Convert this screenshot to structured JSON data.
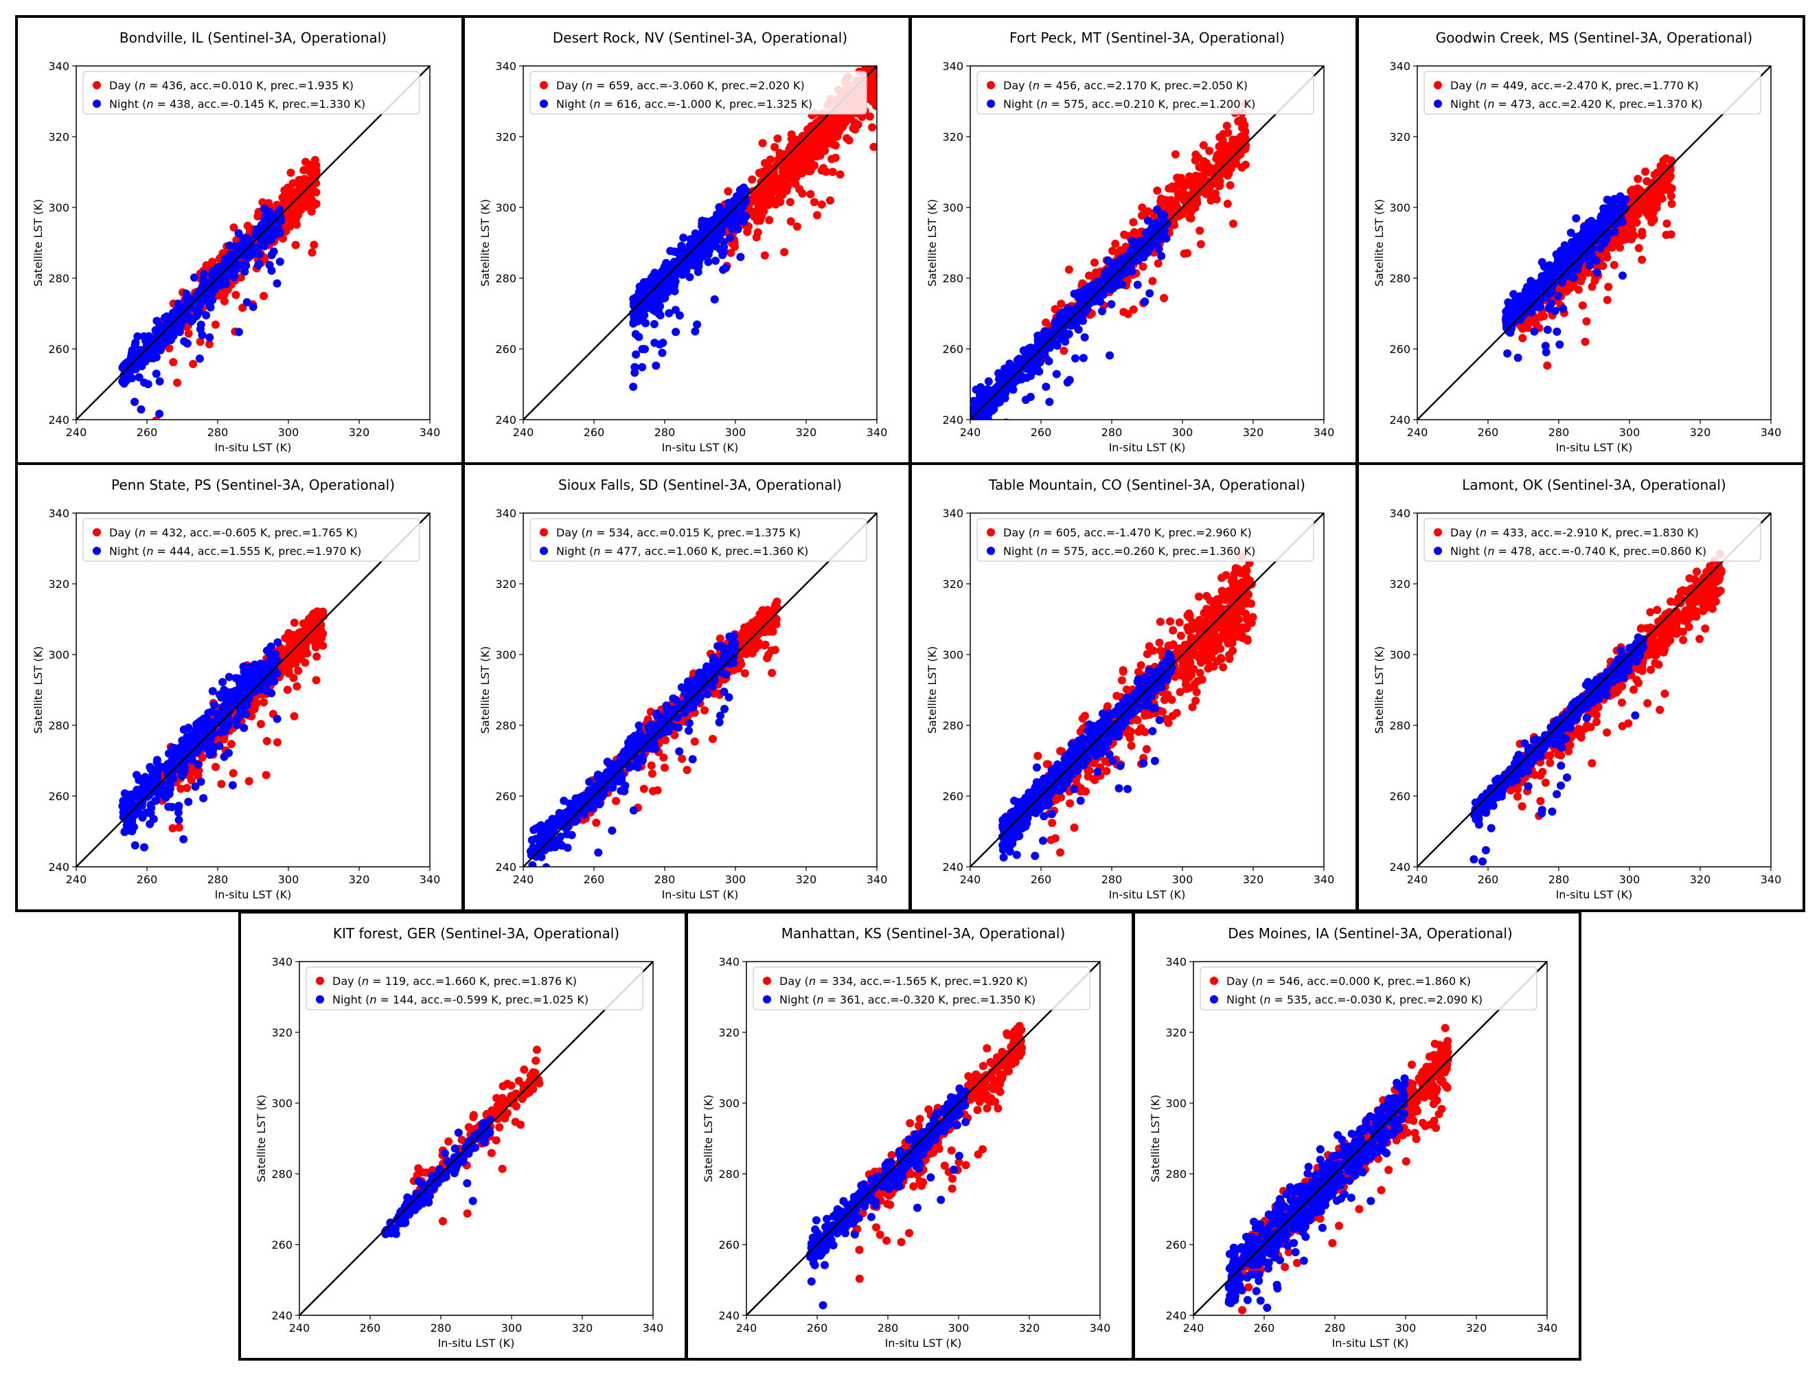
{
  "chart_data": [
    {
      "type": "scatter",
      "title": "Bondville, IL (Sentinel-3A, Operational)",
      "xlabel": "In-situ LST (K)",
      "ylabel": "Satellite LST (K)",
      "xlim": [
        240,
        340
      ],
      "ylim": [
        240,
        340
      ],
      "ticks": [
        240,
        260,
        280,
        300,
        320,
        340
      ],
      "legend_position": "top-left",
      "series": [
        {
          "name": "Day",
          "prefix": "Day (",
          "n_label": "n",
          "rest": " = 436, acc.=0.010 K, prec.=1.935 K)",
          "color": "#ff0000",
          "n": 436,
          "accuracy": 0.01,
          "precision": 1.935,
          "x_range": [
            262,
            308
          ],
          "bias": 0.01,
          "spread": 1.935
        },
        {
          "name": "Night",
          "prefix": "Night (",
          "n_label": "n",
          "rest": " = 438, acc.=-0.145 K, prec.=1.330 K)",
          "color": "#0000ff",
          "n": 438,
          "accuracy": -0.145,
          "precision": 1.33,
          "x_range": [
            253,
            298
          ],
          "bias": -0.145,
          "spread": 1.33
        }
      ]
    },
    {
      "type": "scatter",
      "title": "Desert Rock, NV (Sentinel-3A, Operational)",
      "xlabel": "In-situ LST (K)",
      "ylabel": "Satellite LST (K)",
      "xlim": [
        240,
        340
      ],
      "ylim": [
        240,
        340
      ],
      "ticks": [
        240,
        260,
        280,
        300,
        320,
        340
      ],
      "legend_position": "top-left",
      "series": [
        {
          "name": "Day",
          "prefix": "Day (",
          "n_label": "n",
          "rest": " = 659, acc.=-3.060 K, prec.=2.020 K)",
          "color": "#ff0000",
          "n": 659,
          "accuracy": -3.06,
          "precision": 2.02,
          "x_range": [
            295,
            340
          ],
          "bias": -3.06,
          "spread": 2.02
        },
        {
          "name": "Night",
          "prefix": "Night (",
          "n_label": "n",
          "rest": " = 616, acc.=-1.000 K, prec.=1.325 K)",
          "color": "#0000ff",
          "n": 616,
          "accuracy": -1.0,
          "precision": 1.325,
          "x_range": [
            271,
            303
          ],
          "bias": -1.0,
          "spread": 1.325
        }
      ]
    },
    {
      "type": "scatter",
      "title": "Fort Peck, MT (Sentinel-3A, Operational)",
      "xlabel": "In-situ LST (K)",
      "ylabel": "Satellite LST (K)",
      "xlim": [
        240,
        340
      ],
      "ylim": [
        240,
        340
      ],
      "ticks": [
        240,
        260,
        280,
        300,
        320,
        340
      ],
      "legend_position": "top-left",
      "series": [
        {
          "name": "Day",
          "prefix": "Day (",
          "n_label": "n",
          "rest": " = 456, acc.=2.170 K, prec.=2.050 K)",
          "color": "#ff0000",
          "n": 456,
          "accuracy": 2.17,
          "precision": 2.05,
          "x_range": [
            258,
            318
          ],
          "bias": 2.17,
          "spread": 2.05
        },
        {
          "name": "Night",
          "prefix": "Night (",
          "n_label": "n",
          "rest": " = 575, acc.=0.210 K, prec.=1.200 K)",
          "color": "#0000ff",
          "n": 575,
          "accuracy": 0.21,
          "precision": 1.2,
          "x_range": [
            240,
            296
          ],
          "bias": 0.21,
          "spread": 1.2
        }
      ]
    },
    {
      "type": "scatter",
      "title": "Goodwin Creek, MS (Sentinel-3A, Operational)",
      "xlabel": "In-situ LST (K)",
      "ylabel": "Satellite LST (K)",
      "xlim": [
        240,
        340
      ],
      "ylim": [
        240,
        340
      ],
      "ticks": [
        240,
        260,
        280,
        300,
        320,
        340
      ],
      "legend_position": "top-left",
      "series": [
        {
          "name": "Day",
          "prefix": "Day (",
          "n_label": "n",
          "rest": " = 449, acc.=-2.470 K, prec.=1.770 K)",
          "color": "#ff0000",
          "n": 449,
          "accuracy": -2.47,
          "precision": 1.77,
          "x_range": [
            268,
            312
          ],
          "bias": -2.47,
          "spread": 1.77
        },
        {
          "name": "Night",
          "prefix": "Night (",
          "n_label": "n",
          "rest": " = 473, acc.=2.420 K, prec.=1.370 K)",
          "color": "#0000ff",
          "n": 473,
          "accuracy": 2.42,
          "precision": 1.37,
          "x_range": [
            265,
            299
          ],
          "bias": 2.42,
          "spread": 1.37
        }
      ]
    },
    {
      "type": "scatter",
      "title": "Penn State, PS (Sentinel-3A, Operational)",
      "xlabel": "In-situ LST (K)",
      "ylabel": "Satellite LST (K)",
      "xlim": [
        240,
        340
      ],
      "ylim": [
        240,
        340
      ],
      "ticks": [
        240,
        260,
        280,
        300,
        320,
        340
      ],
      "legend_position": "top-left",
      "series": [
        {
          "name": "Day",
          "prefix": "Day (",
          "n_label": "n",
          "rest": " = 432, acc.=-0.605 K, prec.=1.765 K)",
          "color": "#ff0000",
          "n": 432,
          "accuracy": -0.605,
          "precision": 1.765,
          "x_range": [
            262,
            310
          ],
          "bias": -0.605,
          "spread": 1.765
        },
        {
          "name": "Night",
          "prefix": "Night (",
          "n_label": "n",
          "rest": " = 444, acc.=1.555 K, prec.=1.970 K)",
          "color": "#0000ff",
          "n": 444,
          "accuracy": 1.555,
          "precision": 1.97,
          "x_range": [
            253,
            297
          ],
          "bias": 1.555,
          "spread": 1.97
        }
      ]
    },
    {
      "type": "scatter",
      "title": "Sioux Falls, SD (Sentinel-3A, Operational)",
      "xlabel": "In-situ LST (K)",
      "ylabel": "Satellite LST (K)",
      "xlim": [
        240,
        340
      ],
      "ylim": [
        240,
        340
      ],
      "ticks": [
        240,
        260,
        280,
        300,
        320,
        340
      ],
      "legend_position": "top-left",
      "series": [
        {
          "name": "Day",
          "prefix": "Day (",
          "n_label": "n",
          "rest": " = 534, acc.=0.015 K, prec.=1.375 K)",
          "color": "#ff0000",
          "n": 534,
          "accuracy": 0.015,
          "precision": 1.375,
          "x_range": [
            252,
            312
          ],
          "bias": 0.015,
          "spread": 1.375
        },
        {
          "name": "Night",
          "prefix": "Night (",
          "n_label": "n",
          "rest": " = 477, acc.=1.060 K, prec.=1.360 K)",
          "color": "#0000ff",
          "n": 477,
          "accuracy": 1.06,
          "precision": 1.36,
          "x_range": [
            242,
            300
          ],
          "bias": 1.06,
          "spread": 1.36
        }
      ]
    },
    {
      "type": "scatter",
      "title": "Table Mountain, CO (Sentinel-3A, Operational)",
      "xlabel": "In-situ LST (K)",
      "ylabel": "Satellite LST (K)",
      "xlim": [
        240,
        340
      ],
      "ylim": [
        240,
        340
      ],
      "ticks": [
        240,
        260,
        280,
        300,
        320,
        340
      ],
      "legend_position": "top-left",
      "series": [
        {
          "name": "Day",
          "prefix": "Day (",
          "n_label": "n",
          "rest": " = 605, acc.=-1.470 K, prec.=2.960 K)",
          "color": "#ff0000",
          "n": 605,
          "accuracy": -1.47,
          "precision": 2.96,
          "x_range": [
            258,
            320
          ],
          "bias": -1.47,
          "spread": 2.96
        },
        {
          "name": "Night",
          "prefix": "Night (",
          "n_label": "n",
          "rest": " = 575, acc.=0.260 K, prec.=1.360 K)",
          "color": "#0000ff",
          "n": 575,
          "accuracy": 0.26,
          "precision": 1.36,
          "x_range": [
            249,
            297
          ],
          "bias": 0.26,
          "spread": 1.36
        }
      ]
    },
    {
      "type": "scatter",
      "title": "Lamont, OK (Sentinel-3A, Operational)",
      "xlabel": "In-situ LST (K)",
      "ylabel": "Satellite LST (K)",
      "xlim": [
        240,
        340
      ],
      "ylim": [
        240,
        340
      ],
      "ticks": [
        240,
        260,
        280,
        300,
        320,
        340
      ],
      "legend_position": "top-left",
      "series": [
        {
          "name": "Day",
          "prefix": "Day (",
          "n_label": "n",
          "rest": " = 433, acc.=-2.910 K, prec.=1.830 K)",
          "color": "#ff0000",
          "n": 433,
          "accuracy": -2.91,
          "precision": 1.83,
          "x_range": [
            266,
            326
          ],
          "bias": -2.91,
          "spread": 1.83
        },
        {
          "name": "Night",
          "prefix": "Night (",
          "n_label": "n",
          "rest": " = 478, acc.=-0.740 K, prec.=0.860 K)",
          "color": "#0000ff",
          "n": 478,
          "accuracy": -0.74,
          "precision": 0.86,
          "x_range": [
            256,
            304
          ],
          "bias": -0.74,
          "spread": 0.86
        }
      ]
    },
    {
      "type": "scatter",
      "title": "KIT forest, GER (Sentinel-3A, Operational)",
      "xlabel": "In-situ LST (K)",
      "ylabel": "Satellite LST (K)",
      "xlim": [
        240,
        340
      ],
      "ylim": [
        240,
        340
      ],
      "ticks": [
        240,
        260,
        280,
        300,
        320,
        340
      ],
      "legend_position": "top-left",
      "series": [
        {
          "name": "Day",
          "prefix": "Day (",
          "n_label": "n",
          "rest": " = 119, acc.=1.660 K, prec.=1.876 K)",
          "color": "#ff0000",
          "n": 119,
          "accuracy": 1.66,
          "precision": 1.876,
          "x_range": [
            270,
            308
          ],
          "bias": 1.66,
          "spread": 1.876
        },
        {
          "name": "Night",
          "prefix": "Night (",
          "n_label": "n",
          "rest": " = 144, acc.=-0.599 K, prec.=1.025 K)",
          "color": "#0000ff",
          "n": 144,
          "accuracy": -0.599,
          "precision": 1.025,
          "x_range": [
            264,
            294
          ],
          "bias": -0.599,
          "spread": 1.025
        }
      ]
    },
    {
      "type": "scatter",
      "title": "Manhattan, KS (Sentinel-3A, Operational)",
      "xlabel": "In-situ LST (K)",
      "ylabel": "Satellite LST (K)",
      "xlim": [
        240,
        340
      ],
      "ylim": [
        240,
        340
      ],
      "ticks": [
        240,
        260,
        280,
        300,
        320,
        340
      ],
      "legend_position": "top-left",
      "series": [
        {
          "name": "Day",
          "prefix": "Day (",
          "n_label": "n",
          "rest": " = 334, acc.=-1.565 K, prec.=1.920 K)",
          "color": "#ff0000",
          "n": 334,
          "accuracy": -1.565,
          "precision": 1.92,
          "x_range": [
            268,
            318
          ],
          "bias": -1.565,
          "spread": 1.92
        },
        {
          "name": "Night",
          "prefix": "Night (",
          "n_label": "n",
          "rest": " = 361, acc.=-0.320 K, prec.=1.350 K)",
          "color": "#0000ff",
          "n": 361,
          "accuracy": -0.32,
          "precision": 1.35,
          "x_range": [
            258,
            302
          ],
          "bias": -0.32,
          "spread": 1.35
        }
      ]
    },
    {
      "type": "scatter",
      "title": "Des Moines, IA (Sentinel-3A, Operational)",
      "xlabel": "In-situ LST (K)",
      "ylabel": "Satellite LST (K)",
      "xlim": [
        240,
        340
      ],
      "ylim": [
        240,
        340
      ],
      "ticks": [
        240,
        260,
        280,
        300,
        320,
        340
      ],
      "legend_position": "top-left",
      "series": [
        {
          "name": "Day",
          "prefix": "Day (",
          "n_label": "n",
          "rest": " = 546, acc.=0.000 K, prec.=1.860 K)",
          "color": "#ff0000",
          "n": 546,
          "accuracy": 0.0,
          "precision": 1.86,
          "x_range": [
            252,
            312
          ],
          "bias": 0.0,
          "spread": 1.86
        },
        {
          "name": "Night",
          "prefix": "Night (",
          "n_label": "n",
          "rest": " = 535, acc.=-0.030 K, prec.=2.090 K)",
          "color": "#0000ff",
          "n": 535,
          "accuracy": -0.03,
          "precision": 2.09,
          "x_range": [
            250,
            300
          ],
          "bias": -0.03,
          "spread": 2.09
        }
      ]
    }
  ]
}
